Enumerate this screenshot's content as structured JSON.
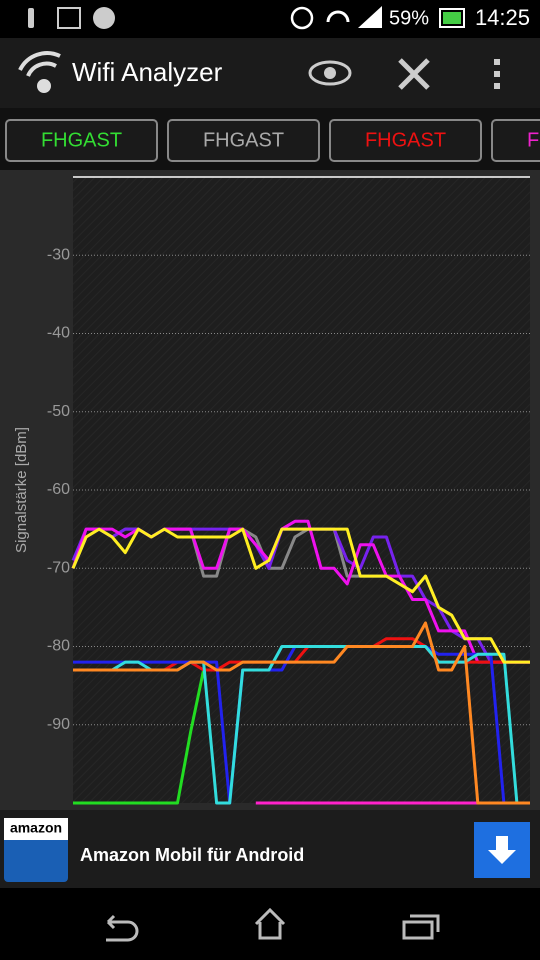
{
  "status_bar": {
    "battery": "59%",
    "time": "14:25"
  },
  "app_bar": {
    "title": "Wifi Analyzer"
  },
  "tabs": [
    {
      "label": "FHGAST",
      "color": "#33dd33"
    },
    {
      "label": "FHGAST",
      "color": "#aaaaaa"
    },
    {
      "label": "FHGAST",
      "color": "#ee1111"
    },
    {
      "label": "FHGAST",
      "color": "#ee22cc"
    }
  ],
  "chart_data": {
    "type": "line",
    "y_label": "Signalstärke [dBm]",
    "ylim": [
      -100,
      -20
    ],
    "yticks": [
      -30,
      -40,
      -50,
      -60,
      -70,
      -80,
      -90
    ],
    "grid": true,
    "categories": [
      null,
      null,
      null,
      null,
      null,
      null,
      null,
      null,
      null,
      null,
      null,
      null,
      null,
      null,
      null,
      null,
      null,
      null,
      null,
      null,
      null,
      null,
      null,
      null,
      null,
      null,
      null,
      null,
      null,
      null,
      null,
      null,
      null,
      null,
      null,
      null
    ],
    "series": [
      {
        "color": "#ff22cc",
        "values": [
          null,
          null,
          null,
          null,
          null,
          null,
          null,
          null,
          null,
          null,
          null,
          null,
          null,
          null,
          -100,
          -100,
          -100,
          -100,
          -100,
          -100,
          -100,
          -100,
          -100,
          -100,
          -100,
          -100,
          -100,
          -100,
          -100,
          -100,
          -100,
          -100,
          -100,
          -100,
          -100,
          -100
        ]
      },
      {
        "color": "#22dd22",
        "values": [
          -100,
          -100,
          -100,
          -100,
          -100,
          -100,
          -100,
          -100,
          -100,
          -91,
          -83,
          null,
          null,
          null,
          null,
          null,
          null,
          null,
          null,
          null,
          null,
          null,
          null,
          null,
          null,
          null,
          null,
          null,
          null,
          null,
          null,
          null,
          null,
          null,
          null,
          null
        ]
      },
      {
        "color": "#888888",
        "values": [
          -70,
          -66,
          -65,
          -66,
          -65,
          -65,
          -66,
          -65,
          -65,
          -65,
          -71,
          -71,
          -65,
          -65,
          -66,
          -70,
          -70,
          -66,
          -65,
          -65,
          -65,
          -71,
          -71,
          -71,
          -71,
          -72,
          -73,
          -71,
          -75,
          -76,
          -79,
          -79,
          -79,
          -82,
          -82,
          -82
        ]
      },
      {
        "color": "#7722ee",
        "values": [
          -69,
          -65,
          -65,
          -66,
          -65,
          -65,
          -66,
          -65,
          -65,
          -65,
          -65,
          -65,
          -65,
          -65,
          -67,
          -70,
          -65,
          -65,
          -65,
          -65,
          -65,
          -69,
          -70,
          -66,
          -66,
          -71,
          -71,
          -74,
          -75,
          -78,
          -79,
          -79,
          -82,
          -82,
          -82,
          -82
        ]
      },
      {
        "color": "#ee11ee",
        "values": [
          -70,
          -65,
          -65,
          -65,
          -66,
          -65,
          -66,
          -65,
          -65,
          -65,
          -70,
          -70,
          -65,
          -65,
          -67,
          -69,
          -65,
          -64,
          -64,
          -70,
          -70,
          -72,
          -67,
          -67,
          -71,
          -71,
          -74,
          -74,
          -78,
          -78,
          -78,
          -82,
          -82,
          -82,
          -82,
          -82
        ]
      },
      {
        "color": "#ee1111",
        "values": [
          -83,
          -83,
          -83,
          -83,
          -83,
          -83,
          -83,
          -83,
          -82,
          -82,
          -83,
          -83,
          -82,
          -82,
          -82,
          -82,
          -82,
          -82,
          -80,
          -80,
          -80,
          -80,
          -80,
          -80,
          -79,
          -79,
          -79,
          -80,
          -82,
          -82,
          -82,
          -82,
          -82,
          -82,
          -82,
          -82
        ]
      },
      {
        "color": "#2222ee",
        "values": [
          -82,
          -82,
          -82,
          -82,
          -82,
          -82,
          -82,
          -82,
          -82,
          -82,
          -82,
          -82,
          -100,
          -83,
          -83,
          -83,
          -83,
          -80,
          -80,
          -80,
          -80,
          -80,
          -80,
          -80,
          -80,
          -80,
          -80,
          -80,
          -81,
          -81,
          -81,
          -81,
          -81,
          -100,
          -100,
          -100
        ]
      },
      {
        "color": "#33dddd",
        "values": [
          -83,
          -83,
          -83,
          -83,
          -82,
          -82,
          -83,
          -83,
          -83,
          -82,
          -82,
          -100,
          -100,
          -83,
          -83,
          -83,
          -80,
          -80,
          -80,
          -80,
          -80,
          -80,
          -80,
          -80,
          -80,
          -80,
          -80,
          -80,
          -82,
          -82,
          -82,
          -81,
          -81,
          -81,
          -100,
          -100
        ]
      },
      {
        "color": "#ff8822",
        "values": [
          -83,
          -83,
          -83,
          -83,
          -83,
          -83,
          -83,
          -83,
          -83,
          -82,
          -82,
          -83,
          -83,
          -82,
          -82,
          -82,
          -82,
          -82,
          -82,
          -82,
          -82,
          -80,
          -80,
          -80,
          -80,
          -80,
          -80,
          -77,
          -83,
          -83,
          -80,
          -100,
          -100,
          -100,
          -100,
          -100
        ]
      },
      {
        "color": "#ffee22",
        "values": [
          -70,
          -66,
          -65,
          -66,
          -68,
          -65,
          -66,
          -65,
          -66,
          -66,
          -66,
          -66,
          -66,
          -65,
          -70,
          -69,
          -65,
          -65,
          -65,
          -65,
          -65,
          -65,
          -71,
          -71,
          -71,
          -72,
          -73,
          -71,
          -75,
          -76,
          -79,
          -79,
          -79,
          -82,
          -82,
          -82
        ]
      }
    ]
  },
  "ad": {
    "brand": "amazon",
    "text": "Amazon Mobil für Android"
  }
}
